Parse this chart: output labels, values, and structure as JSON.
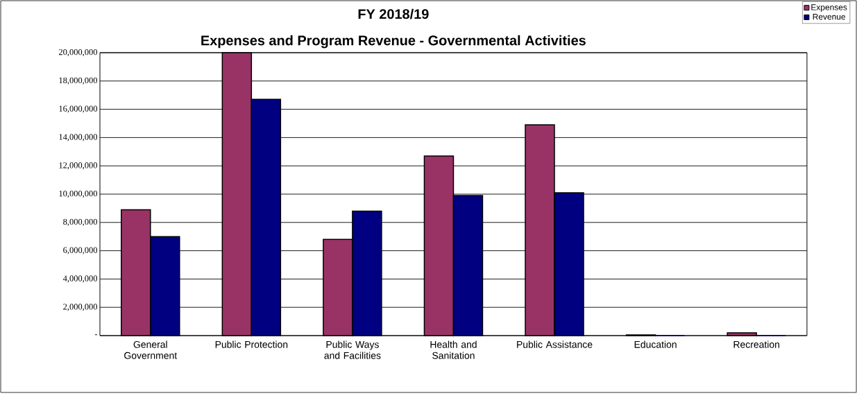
{
  "chart_data": {
    "type": "bar",
    "title": "FY 2018/19",
    "subtitle": "Expenses and Program Revenue - Governmental Activities",
    "categories": [
      "General Government",
      "Public Protection",
      "Public Ways and Facilities",
      "Health and Sanitation",
      "Public Assistance",
      "Education",
      "Recreation"
    ],
    "series": [
      {
        "name": "Expenses",
        "color": "#993366",
        "values": [
          8900000,
          20000000,
          6800000,
          12700000,
          14900000,
          50000,
          200000
        ]
      },
      {
        "name": "Revenue",
        "color": "#000080",
        "values": [
          7000000,
          16700000,
          8800000,
          9900000,
          10100000,
          0,
          0
        ]
      }
    ],
    "ylim": [
      0,
      20000000
    ],
    "yticks": [
      {
        "value": 0,
        "label": "-"
      },
      {
        "value": 2000000,
        "label": "2,000,000"
      },
      {
        "value": 4000000,
        "label": "4,000,000"
      },
      {
        "value": 6000000,
        "label": "6,000,000"
      },
      {
        "value": 8000000,
        "label": "8,000,000"
      },
      {
        "value": 10000000,
        "label": "10,000,000"
      },
      {
        "value": 12000000,
        "label": "12,000,000"
      },
      {
        "value": 14000000,
        "label": "14,000,000"
      },
      {
        "value": 16000000,
        "label": "16,000,000"
      },
      {
        "value": 18000000,
        "label": "18,000,000"
      },
      {
        "value": 20000000,
        "label": "20,000,000"
      }
    ],
    "grid": "y",
    "legend": "top right"
  }
}
